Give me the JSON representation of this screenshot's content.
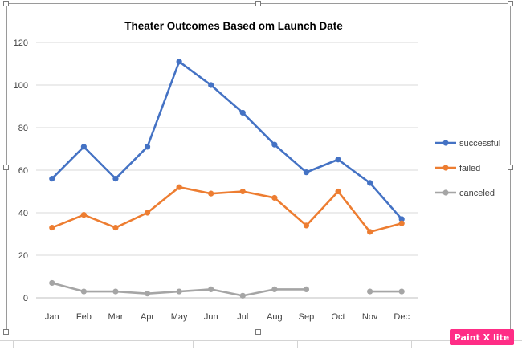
{
  "chart_data": {
    "type": "line",
    "title": "Theater Outcomes Based om Launch  Date",
    "categories": [
      "Jan",
      "Feb",
      "Mar",
      "Apr",
      "May",
      "Jun",
      "Jul",
      "Aug",
      "Sep",
      "Oct",
      "Nov",
      "Dec"
    ],
    "series": [
      {
        "name": "successful",
        "color": "#4472c4",
        "values": [
          56,
          71,
          56,
          71,
          111,
          100,
          87,
          72,
          59,
          65,
          54,
          37
        ]
      },
      {
        "name": "failed",
        "color": "#ed7d31",
        "values": [
          33,
          39,
          33,
          40,
          52,
          49,
          50,
          47,
          34,
          50,
          31,
          35
        ]
      },
      {
        "name": "canceled",
        "color": "#a5a5a5",
        "values": [
          7,
          3,
          3,
          2,
          3,
          4,
          1,
          4,
          4,
          null,
          3,
          3
        ]
      }
    ],
    "ylim": [
      0,
      120
    ],
    "yticks": [
      "0",
      "20",
      "40",
      "60",
      "80",
      "100",
      "120"
    ],
    "xlabel": "",
    "ylabel": "",
    "grid": true,
    "legend_position": "right"
  },
  "watermark": {
    "text": "Paint X lite",
    "color": "#ff2d86"
  }
}
